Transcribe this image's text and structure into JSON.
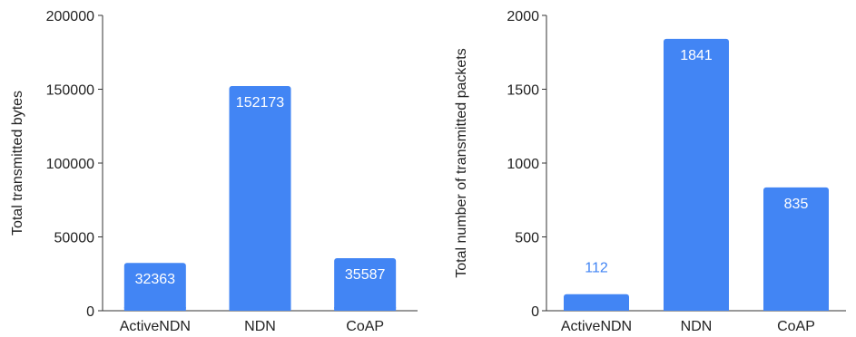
{
  "chart_data": [
    {
      "type": "bar",
      "categories": [
        "ActiveNDN",
        "NDN",
        "CoAP"
      ],
      "values": [
        32363,
        152173,
        35587
      ],
      "data_labels": [
        "32363",
        "152173",
        "35587"
      ],
      "ylabel": "Total transmitted bytes",
      "ylim": [
        0,
        200000
      ],
      "yticks": [
        0,
        50000,
        100000,
        150000,
        200000
      ],
      "ytick_labels": [
        "0",
        "50000",
        "100000",
        "150000",
        "200000"
      ],
      "grid": false,
      "colors": {
        "bar": "#4285f4",
        "label_inside": "#ffffff",
        "label_outside": "#4285f4"
      }
    },
    {
      "type": "bar",
      "categories": [
        "ActiveNDN",
        "NDN",
        "CoAP"
      ],
      "values": [
        112,
        1841,
        835
      ],
      "data_labels": [
        "112",
        "1841",
        "835"
      ],
      "ylabel": "Total number of transmitted packets",
      "ylim": [
        0,
        2000
      ],
      "yticks": [
        0,
        500,
        1000,
        1500,
        2000
      ],
      "ytick_labels": [
        "0",
        "500",
        "1000",
        "1500",
        "2000"
      ],
      "grid": false,
      "colors": {
        "bar": "#4285f4",
        "label_inside": "#ffffff",
        "label_outside": "#4285f4"
      }
    }
  ]
}
